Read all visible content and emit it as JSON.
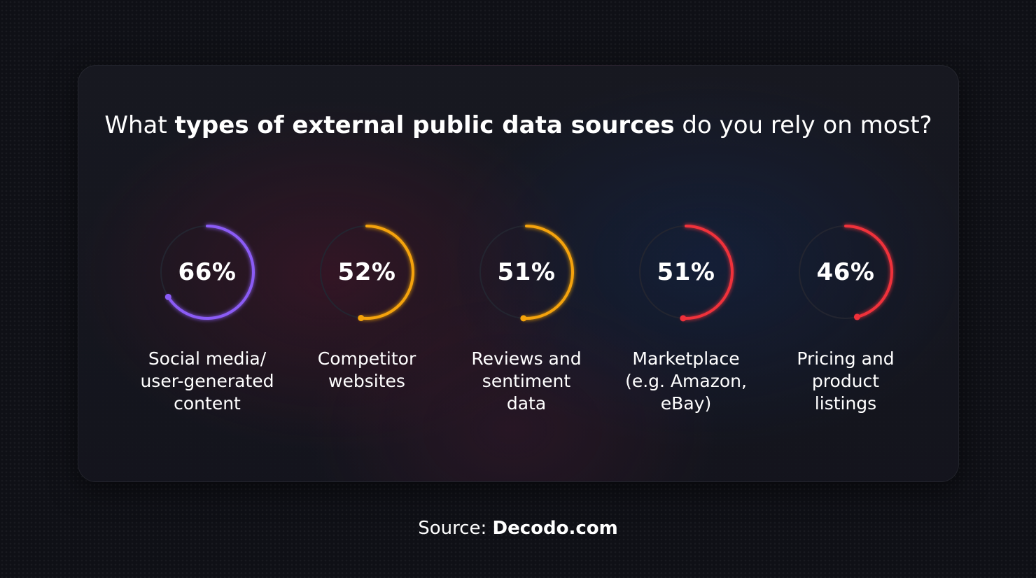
{
  "title": {
    "part1": "What ",
    "bold1": "types of external public data sources",
    "part2": " do you rely on most?"
  },
  "chart_data": {
    "type": "radial-progress",
    "title": "What types of external public data sources do you rely on most?",
    "unit": "%",
    "items": [
      {
        "label": "Social media/\nuser-generated\ncontent",
        "value": 66,
        "display": "66%",
        "color": "#8b5cf6"
      },
      {
        "label": "Competitor\nwebsites",
        "value": 52,
        "display": "52%",
        "color": "#f5a30a"
      },
      {
        "label": "Reviews and\nsentiment\ndata",
        "value": 51,
        "display": "51%",
        "color": "#f5a30a"
      },
      {
        "label": "Marketplace\n(e.g. Amazon,\neBay)",
        "value": 51,
        "display": "51%",
        "color": "#f0303a"
      },
      {
        "label": "Pricing and\nproduct\nlistings",
        "value": 46,
        "display": "46%",
        "color": "#f0303a"
      }
    ]
  },
  "source": {
    "prefix": "Source: ",
    "name": "Decodo.com"
  },
  "colors": {
    "background": "#0f1016",
    "track": "#232530",
    "text": "#ffffff"
  }
}
